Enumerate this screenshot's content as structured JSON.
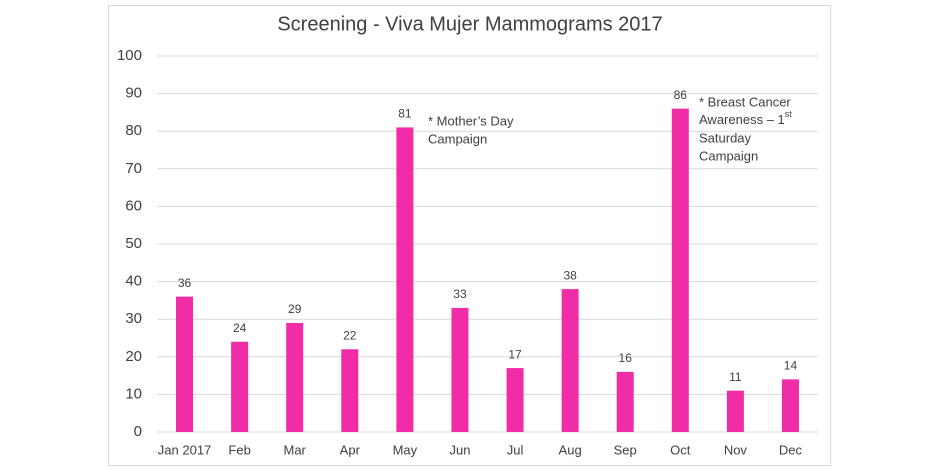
{
  "chart_data": {
    "type": "bar",
    "title": "Screening - Viva Mujer Mammograms 2017",
    "categories": [
      "Jan 2017",
      "Feb",
      "Mar",
      "Apr",
      "May",
      "Jun",
      "Jul",
      "Aug",
      "Sep",
      "Oct",
      "Nov",
      "Dec"
    ],
    "values": [
      36,
      24,
      29,
      22,
      81,
      33,
      17,
      38,
      16,
      86,
      11,
      14
    ],
    "color": "#f02ca6",
    "ylim": [
      0,
      100
    ],
    "yticks": [
      0,
      10,
      20,
      30,
      40,
      50,
      60,
      70,
      80,
      90,
      100
    ],
    "grid": true,
    "annotations": [
      {
        "lines": [
          "* Mother’s Day",
          "Campaign"
        ]
      },
      {
        "lines": [
          "* Breast Cancer",
          {
            "text": "Awareness – 1",
            "sup": "st"
          },
          "Saturday",
          "Campaign"
        ]
      }
    ]
  }
}
